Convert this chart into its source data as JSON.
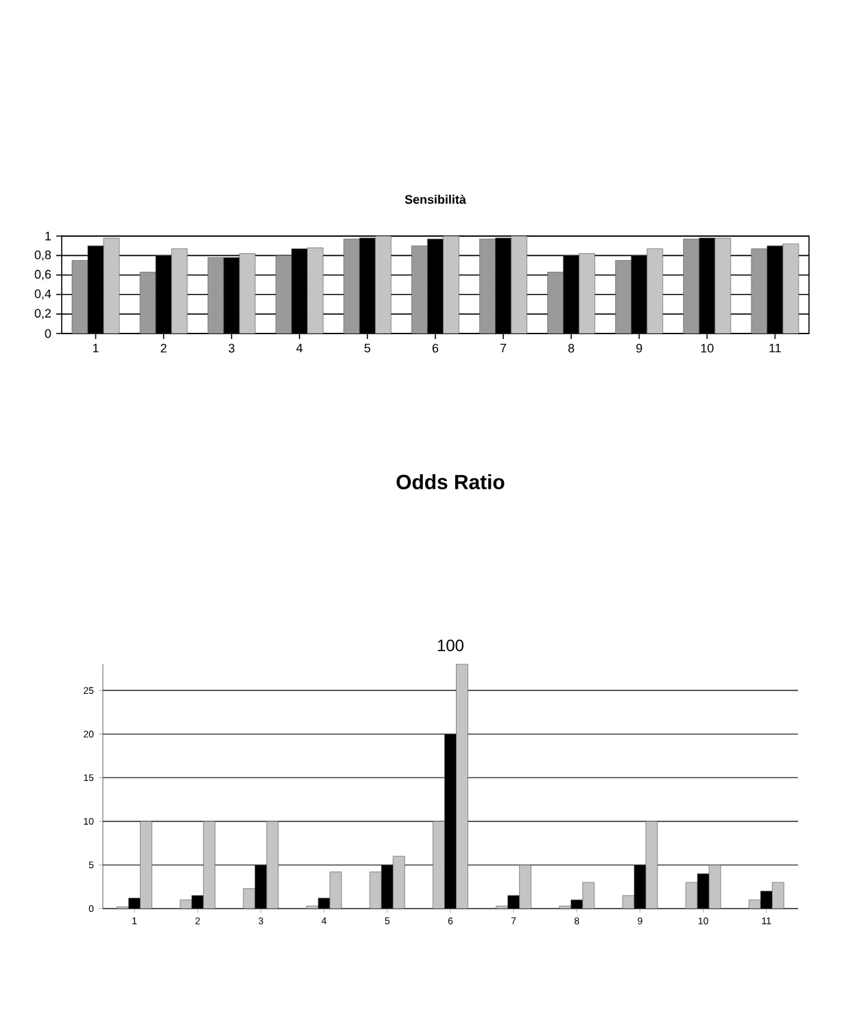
{
  "chart_data": [
    {
      "type": "bar",
      "title": "Sensibilità",
      "categories": [
        "1",
        "2",
        "3",
        "4",
        "5",
        "6",
        "7",
        "8",
        "9",
        "10",
        "11"
      ],
      "ylim": [
        0,
        1
      ],
      "yticks": [
        0,
        {
          "value": 0.2,
          "label": "0,2"
        },
        {
          "value": 0.4,
          "label": "0,4"
        },
        {
          "value": 0.6,
          "label": "0,6"
        },
        {
          "value": 0.8,
          "label": "0,8"
        },
        1
      ],
      "grid": "y",
      "series": [
        {
          "color": "#9a9a9a",
          "values": [
            0.75,
            0.63,
            0.78,
            0.8,
            0.97,
            0.9,
            0.97,
            0.63,
            0.75,
            0.97,
            0.87
          ]
        },
        {
          "color": "#000000",
          "values": [
            0.9,
            0.8,
            0.78,
            0.87,
            0.98,
            0.97,
            0.98,
            0.8,
            0.8,
            0.98,
            0.9
          ]
        },
        {
          "color": "#c4c4c4",
          "values": [
            0.98,
            0.87,
            0.82,
            0.88,
            1.0,
            1.0,
            1.0,
            0.82,
            0.87,
            0.98,
            0.92
          ]
        }
      ]
    },
    {
      "type": "bar",
      "title": "Odds Ratio",
      "categories": [
        "1",
        "2",
        "3",
        "4",
        "5",
        "6",
        "7",
        "8",
        "9",
        "10",
        "11"
      ],
      "ylim": [
        0,
        28
      ],
      "yticks": [
        0,
        5,
        10,
        15,
        20,
        25
      ],
      "grid": "y",
      "annotations": [
        {
          "text": "100",
          "x": "6",
          "y": 28
        }
      ],
      "series": [
        {
          "color": "#c4c4c4",
          "values": [
            0.2,
            1,
            2.3,
            0.3,
            4.2,
            10,
            0.3,
            0.3,
            1.5,
            3,
            1
          ]
        },
        {
          "color": "#000000",
          "values": [
            1.2,
            1.5,
            5,
            1.2,
            5,
            20,
            1.5,
            1,
            5,
            4,
            2
          ]
        },
        {
          "color": "#c4c4c4",
          "values": [
            10,
            10,
            10,
            4.2,
            6,
            28,
            5,
            3,
            10,
            5,
            3
          ]
        }
      ]
    }
  ]
}
